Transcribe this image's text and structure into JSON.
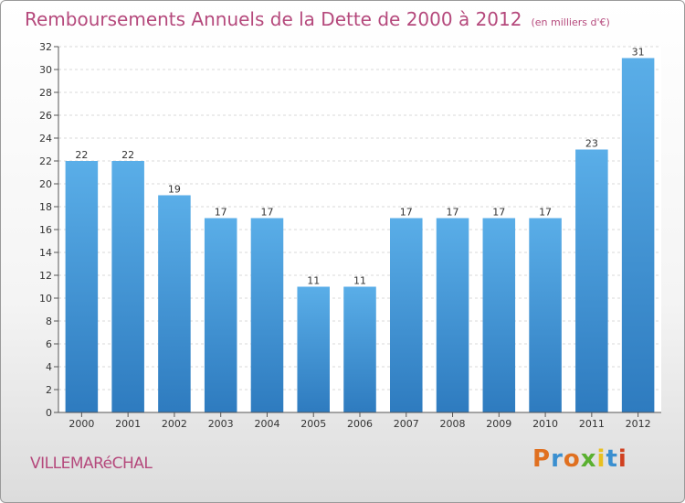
{
  "header": {
    "title": "Remboursements Annuels de la Dette de 2000 à 2012",
    "unit": "(en milliers d'€)"
  },
  "footer": {
    "commune": "VILLEMARéCHAL",
    "logo": "Proxiti",
    "logo_colors": [
      "#e07020",
      "#3a8fd0",
      "#e07020",
      "#5ab030",
      "#e8c020",
      "#3a8fd0",
      "#d04020"
    ]
  },
  "chart_data": {
    "type": "bar",
    "title": "Remboursements Annuels de la Dette de 2000 à 2012",
    "xlabel": "",
    "ylabel": "",
    "categories": [
      "2000",
      "2001",
      "2002",
      "2003",
      "2004",
      "2005",
      "2006",
      "2007",
      "2008",
      "2009",
      "2010",
      "2011",
      "2012"
    ],
    "values": [
      22,
      22,
      19,
      17,
      17,
      11,
      11,
      17,
      17,
      17,
      17,
      23,
      31
    ],
    "ylim": [
      0,
      32
    ],
    "yticks": [
      0,
      2,
      4,
      6,
      8,
      10,
      12,
      14,
      16,
      18,
      20,
      22,
      24,
      26,
      28,
      30,
      32
    ],
    "grid": true,
    "bar_color_top": "#5aaee8",
    "bar_color_bottom": "#2e7bbf"
  }
}
